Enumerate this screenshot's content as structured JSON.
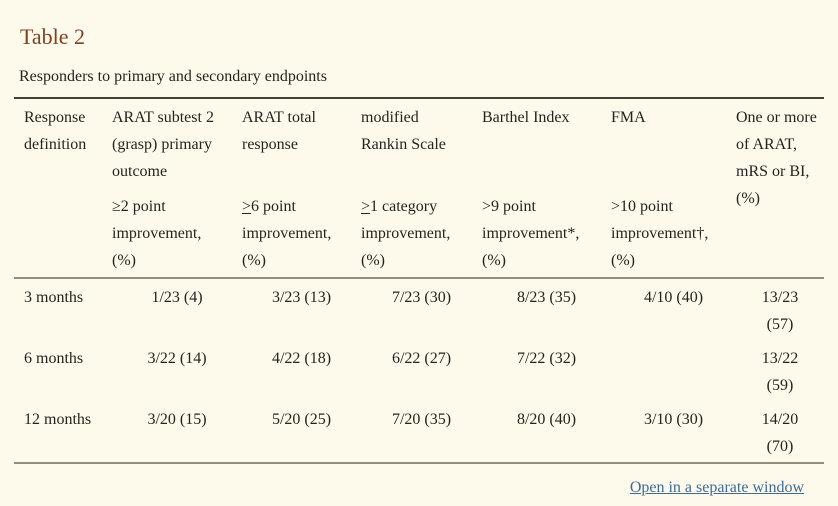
{
  "colors": {
    "background": "#fdfaec",
    "table_label": "#7e4223",
    "body_text": "#24241f",
    "link": "#3e6b96",
    "rule_top": "#403f35",
    "rule_light": "#918f7b"
  },
  "table_float": {
    "label": "Table 2",
    "caption": "Responders to primary and secondary endpoints",
    "header": {
      "response_definition": "Response definition",
      "measures": [
        "ARAT subtest 2 (grasp) primary outcome",
        "ARAT total response",
        "modified Rankin Scale",
        "Barthel Index",
        "FMA"
      ],
      "thresholds": [
        {
          "symbol": "≥",
          "underlined": false,
          "text": "2 point improvement, (%)"
        },
        {
          "symbol": ">",
          "underlined": true,
          "text": "6 point improvement, (%)"
        },
        {
          "symbol": ">",
          "underlined": true,
          "text": "1 category improvement, (%)"
        },
        {
          "symbol": ">",
          "underlined": false,
          "text": "9 point improvement*, (%)"
        },
        {
          "symbol": ">",
          "underlined": false,
          "text": "10 point improvement†, (%)"
        }
      ],
      "combined": "One or more of ARAT, mRS or BI, (%)"
    },
    "rows": [
      {
        "label": "3 months",
        "values": [
          "1/23 (4)",
          "3/23 (13)",
          "7/23 (30)",
          "8/23 (35)",
          "4/10 (40)"
        ],
        "combined": "13/23 (57)"
      },
      {
        "label": "6 months",
        "values": [
          "3/22 (14)",
          "4/22 (18)",
          "6/22 (27)",
          "7/22 (32)",
          ""
        ],
        "combined": "13/22 (59)"
      },
      {
        "label": "12 months",
        "values": [
          "3/20 (15)",
          "5/20 (25)",
          "7/20 (35)",
          "8/20 (40)",
          "3/10 (30)"
        ],
        "combined": "14/20 (70)"
      }
    ],
    "footer_link": "Open in a separate window"
  }
}
